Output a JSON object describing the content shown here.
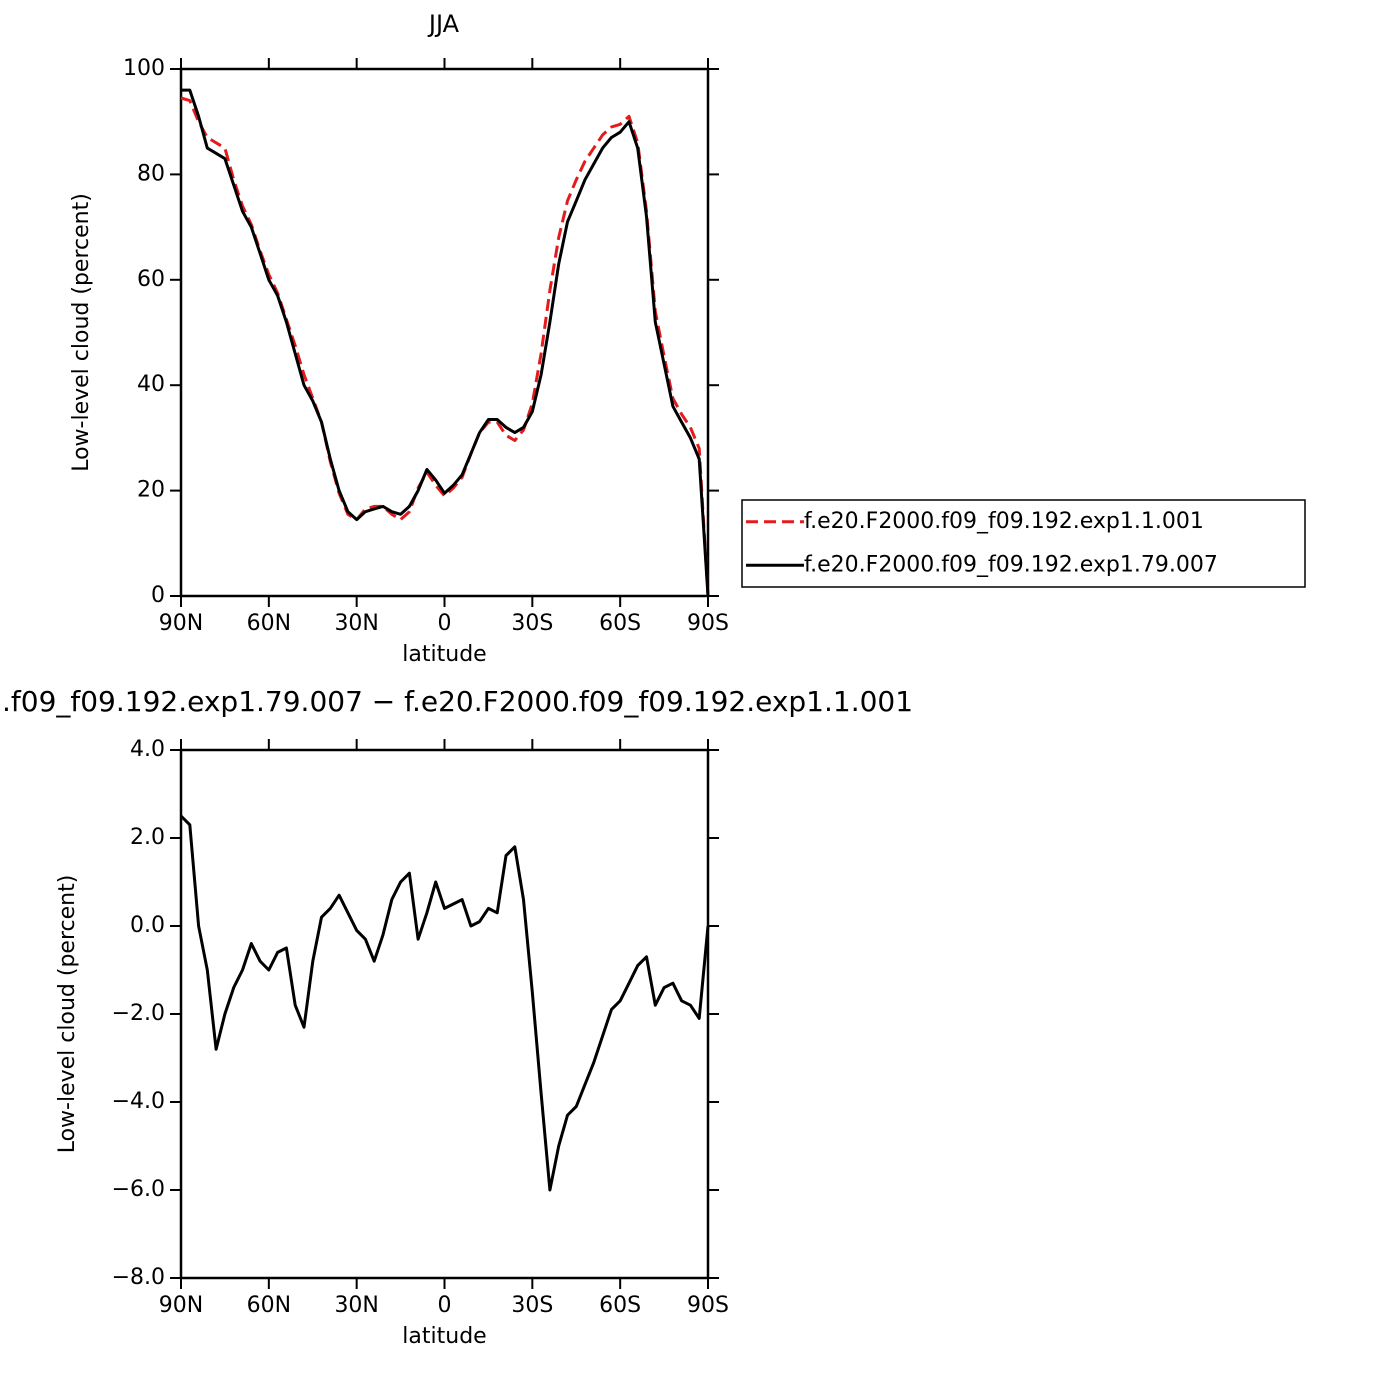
{
  "chart_data": [
    {
      "type": "line",
      "title": "JJA",
      "xlabel": "latitude",
      "ylabel": "Low-level cloud (percent)",
      "x": [
        90,
        87,
        84,
        81,
        78,
        75,
        72,
        69,
        66,
        63,
        60,
        57,
        54,
        51,
        48,
        45,
        42,
        39,
        36,
        33,
        30,
        27,
        24,
        21,
        18,
        15,
        12,
        9,
        6,
        3,
        0,
        -3,
        -6,
        -9,
        -12,
        -15,
        -18,
        -21,
        -24,
        -27,
        -30,
        -33,
        -36,
        -39,
        -42,
        -45,
        -48,
        -51,
        -54,
        -57,
        -60,
        -63,
        -66,
        -69,
        -72,
        -75,
        -78,
        -81,
        -84,
        -87,
        -90
      ],
      "series": [
        {
          "name": "f.e20.F2000.f09_f09.192.exp1.1.001",
          "color": "#e41a1c",
          "dashed": true,
          "values": [
            94.5,
            94,
            90,
            87,
            86,
            85,
            79,
            74,
            70.5,
            65.5,
            61,
            57.5,
            52.5,
            47.5,
            42,
            37.5,
            33,
            25.5,
            19.5,
            15.5,
            14.5,
            16.5,
            17,
            17,
            15.5,
            14.5,
            16,
            20.5,
            23.5,
            21,
            19,
            20.5,
            22.5,
            27,
            31,
            33,
            33,
            30.5,
            29.5,
            31.5,
            36.5,
            46,
            58,
            68,
            75,
            79,
            82.5,
            85,
            87.5,
            89,
            89.5,
            91,
            86,
            73,
            54,
            45.5,
            37.5,
            34.5,
            32,
            28,
            0
          ]
        },
        {
          "name": "f.e20.F2000.f09_f09.192.exp1.79.007",
          "color": "#000000",
          "dashed": false,
          "values": [
            96,
            96,
            91,
            85,
            84,
            83,
            78,
            73,
            70,
            65,
            60,
            57,
            52,
            46,
            40,
            37,
            33,
            26,
            20,
            16,
            14.5,
            16,
            16.5,
            17,
            16,
            15.5,
            17,
            20,
            24,
            22,
            19.5,
            21,
            23,
            27,
            31,
            33.5,
            33.5,
            32,
            31,
            32,
            35,
            42,
            52,
            63,
            71,
            75,
            79,
            82,
            85,
            87,
            88,
            90,
            85,
            72,
            52,
            44,
            36,
            33,
            30,
            26,
            0
          ]
        }
      ],
      "xlim": [
        90,
        -90
      ],
      "xticks": [
        {
          "value": 90,
          "label": "90N"
        },
        {
          "value": 60,
          "label": "60N"
        },
        {
          "value": 30,
          "label": "30N"
        },
        0,
        {
          "value": -30,
          "label": "30S"
        },
        {
          "value": -60,
          "label": "60S"
        },
        {
          "value": -90,
          "label": "90S"
        }
      ],
      "ylim": [
        0,
        100
      ],
      "yticks": [
        0,
        20,
        40,
        60,
        80,
        100
      ],
      "legend": "right"
    },
    {
      "type": "line",
      "title": ".f09_f09.192.exp1.79.007 − f.e20.F2000.f09_f09.192.exp1.1.001",
      "xlabel": "latitude",
      "ylabel": "Low-level cloud (percent)",
      "x": [
        90,
        87,
        84,
        81,
        78,
        75,
        72,
        69,
        66,
        63,
        60,
        57,
        54,
        51,
        48,
        45,
        42,
        39,
        36,
        33,
        30,
        27,
        24,
        21,
        18,
        15,
        12,
        9,
        6,
        3,
        0,
        -3,
        -6,
        -9,
        -12,
        -15,
        -18,
        -21,
        -24,
        -27,
        -30,
        -33,
        -36,
        -39,
        -42,
        -45,
        -48,
        -51,
        -54,
        -57,
        -60,
        -63,
        -66,
        -69,
        -72,
        -75,
        -78,
        -81,
        -84,
        -87,
        -90
      ],
      "values": [
        2.5,
        2.3,
        0,
        -1,
        -2.8,
        -2,
        -1.4,
        -1,
        -0.4,
        -0.8,
        -1,
        -0.6,
        -0.5,
        -1.8,
        -2.3,
        -0.8,
        0.2,
        0.4,
        0.7,
        0.3,
        -0.1,
        -0.3,
        -0.8,
        -0.2,
        0.6,
        1.0,
        1.2,
        -0.3,
        0.3,
        1.0,
        0.4,
        0.5,
        0.6,
        0,
        0.1,
        0.4,
        0.3,
        1.6,
        1.8,
        0.6,
        -1.5,
        -3.8,
        -6.0,
        -5,
        -4.3,
        -4.1,
        -3.6,
        -3.1,
        -2.5,
        -1.9,
        -1.7,
        -1.3,
        -0.9,
        -0.7,
        -1.8,
        -1.4,
        -1.3,
        -1.7,
        -1.8,
        -2.1,
        0
      ],
      "color": "#000000",
      "xlim": [
        90,
        -90
      ],
      "xticks": [
        {
          "value": 90,
          "label": "90N"
        },
        {
          "value": 60,
          "label": "60N"
        },
        {
          "value": 30,
          "label": "30N"
        },
        0,
        {
          "value": -30,
          "label": "30S"
        },
        {
          "value": -60,
          "label": "60S"
        },
        {
          "value": -90,
          "label": "90S"
        }
      ],
      "ylim": [
        -8,
        4
      ],
      "yticks": [
        {
          "value": -8,
          "label": "−8.0"
        },
        {
          "value": -6,
          "label": "−6.0"
        },
        {
          "value": -4,
          "label": "−4.0"
        },
        {
          "value": -2,
          "label": "−2.0"
        },
        {
          "value": 0,
          "label": "0.0"
        },
        {
          "value": 2,
          "label": "2.0"
        },
        {
          "value": 4,
          "label": "4.0"
        }
      ]
    }
  ]
}
